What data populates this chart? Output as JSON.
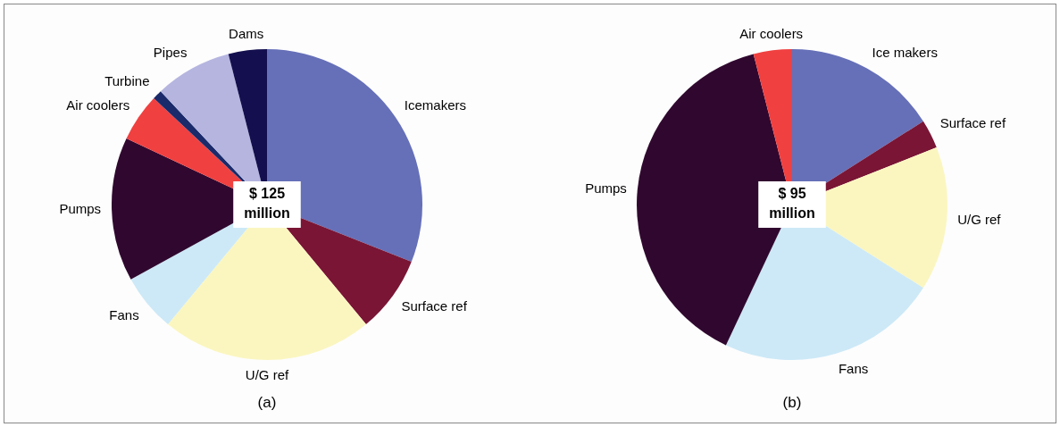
{
  "chart_data": [
    {
      "type": "pie",
      "title": "(a)",
      "categories": [
        "Icemakers",
        "Surface ref",
        "U/G ref",
        "Fans",
        "Pumps",
        "Air coolers",
        "Turbine",
        "Pipes",
        "Dams"
      ],
      "values": [
        31,
        8,
        22,
        6,
        15,
        5,
        1,
        8,
        4
      ],
      "colors": [
        "#6670b8",
        "#7a1535",
        "#fbf6c0",
        "#cde9f7",
        "#30082f",
        "#f04040",
        "#1a2a6a",
        "#b5b5e0",
        "#14104f"
      ],
      "legend": false,
      "annotations": [
        "$ 125 million"
      ]
    },
    {
      "type": "pie",
      "title": "(b)",
      "categories": [
        "Ice makers",
        "Surface ref",
        "U/G ref",
        "Fans",
        "Pumps",
        "Air coolers"
      ],
      "values": [
        16,
        3,
        15,
        23,
        39,
        4
      ],
      "colors": [
        "#6670b8",
        "#7a1535",
        "#fbf6c0",
        "#cde9f7",
        "#30082f",
        "#f04040"
      ],
      "legend": false,
      "annotations": [
        "$ 95 million"
      ]
    }
  ]
}
